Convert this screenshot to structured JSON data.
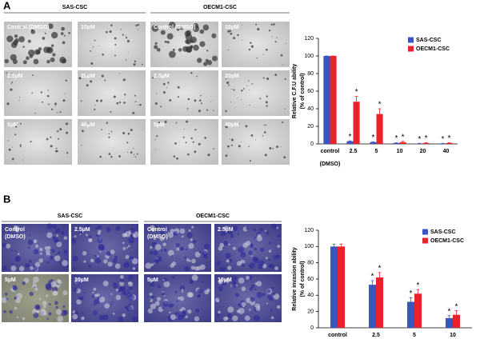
{
  "panel_a": {
    "label": "A",
    "groups": [
      {
        "title": "SAS-CSC",
        "images": [
          [
            "Control (DMSO)"
          ],
          [
            "10µM"
          ],
          [
            "2.5µM"
          ],
          [
            "20µM"
          ],
          [
            "5µM"
          ],
          [
            "40µM"
          ]
        ]
      },
      {
        "title": "OECM1-CSC",
        "images": [
          [
            "Control (DMSO)"
          ],
          [
            "10µM"
          ],
          [
            "2.5µM"
          ],
          [
            "20µM"
          ],
          [
            "5µM"
          ],
          [
            "40µM"
          ]
        ]
      }
    ]
  },
  "panel_b": {
    "label": "B",
    "groups": [
      {
        "title": "SAS-CSC",
        "images": [
          [
            "Control",
            "(DMSO)"
          ],
          [
            "2.5µM"
          ],
          [
            "5µM"
          ],
          [
            "10µM"
          ]
        ]
      },
      {
        "title": "OECM1-CSC",
        "images": [
          [
            "Control",
            "(DMSO)"
          ],
          [
            "2.5µM"
          ],
          [
            "5µM"
          ],
          [
            "10µM"
          ]
        ]
      }
    ]
  },
  "chart_data": [
    {
      "type": "bar",
      "ylabel": [
        "Relative C.F.U ability",
        "(% of control)"
      ],
      "categories": [
        "control",
        "2.5",
        "5",
        "10",
        "20",
        "40"
      ],
      "category_note": "(DMSO)",
      "series": [
        {
          "name": "SAS-CSC",
          "color": "#3a55c0",
          "values": [
            100,
            3,
            2,
            1,
            0.5,
            0.5
          ],
          "errors": [
            0,
            0.5,
            0.5,
            0.3,
            0.2,
            0.2
          ],
          "starred": [
            false,
            true,
            true,
            true,
            true,
            true
          ]
        },
        {
          "name": "OECM1-CSC",
          "color": "#e8232a",
          "values": [
            100,
            48,
            34,
            2,
            1,
            1
          ],
          "errors": [
            0,
            6,
            6,
            1,
            0.5,
            0.5
          ],
          "starred": [
            false,
            true,
            true,
            true,
            true,
            true
          ]
        }
      ],
      "star": "*",
      "ylim": [
        0,
        120
      ],
      "yticks": [
        0,
        20,
        40,
        60,
        80,
        100,
        120
      ],
      "legend": "top-right"
    },
    {
      "type": "bar",
      "ylabel": [
        "Relative invasion ability",
        "(% of control)"
      ],
      "categories": [
        "control",
        "2.5",
        "5",
        "10"
      ],
      "series": [
        {
          "name": "SAS-CSC",
          "color": "#3a55c0",
          "values": [
            100,
            53,
            32,
            12
          ],
          "errors": [
            3,
            5,
            5,
            3
          ],
          "starred": [
            false,
            true,
            true,
            true
          ]
        },
        {
          "name": "OECM1-CSC",
          "color": "#e8232a",
          "values": [
            100,
            62,
            42,
            16
          ],
          "errors": [
            3,
            6,
            5,
            5
          ],
          "starred": [
            false,
            true,
            true,
            true
          ]
        }
      ],
      "star": "*",
      "ylim": [
        0,
        120
      ],
      "yticks": [
        0,
        20,
        40,
        60,
        80,
        100,
        120
      ],
      "legend": "top-right"
    }
  ]
}
